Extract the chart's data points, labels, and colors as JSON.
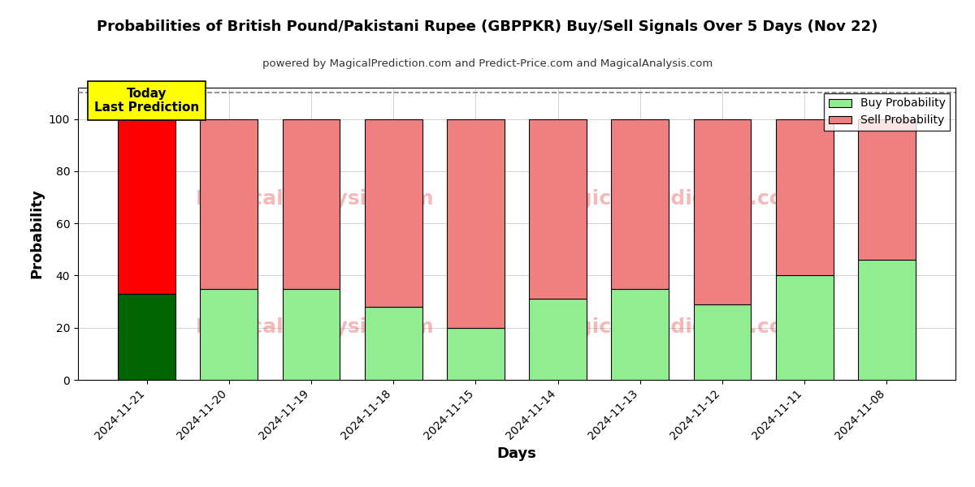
{
  "title": "Probabilities of British Pound/Pakistani Rupee (GBPPKR) Buy/Sell Signals Over 5 Days (Nov 22)",
  "subtitle": "powered by MagicalPrediction.com and Predict-Price.com and MagicalAnalysis.com",
  "xlabel": "Days",
  "ylabel": "Probability",
  "dates": [
    "2024-11-21",
    "2024-11-20",
    "2024-11-19",
    "2024-11-18",
    "2024-11-15",
    "2024-11-14",
    "2024-11-13",
    "2024-11-12",
    "2024-11-11",
    "2024-11-08"
  ],
  "buy_probs": [
    33,
    35,
    35,
    28,
    20,
    31,
    35,
    29,
    40,
    46
  ],
  "sell_probs": [
    67,
    65,
    65,
    72,
    80,
    69,
    65,
    71,
    60,
    54
  ],
  "today_buy_color": "#006400",
  "today_sell_color": "#FF0000",
  "buy_color": "#90EE90",
  "sell_color": "#F08080",
  "today_label": "Today\nLast Prediction",
  "today_label_bg": "#FFFF00",
  "legend_buy": "Buy Probability",
  "legend_sell": "Sell Probability",
  "ylim": [
    0,
    112
  ],
  "dashed_line_y": 110,
  "figsize": [
    12,
    6
  ],
  "dpi": 100
}
